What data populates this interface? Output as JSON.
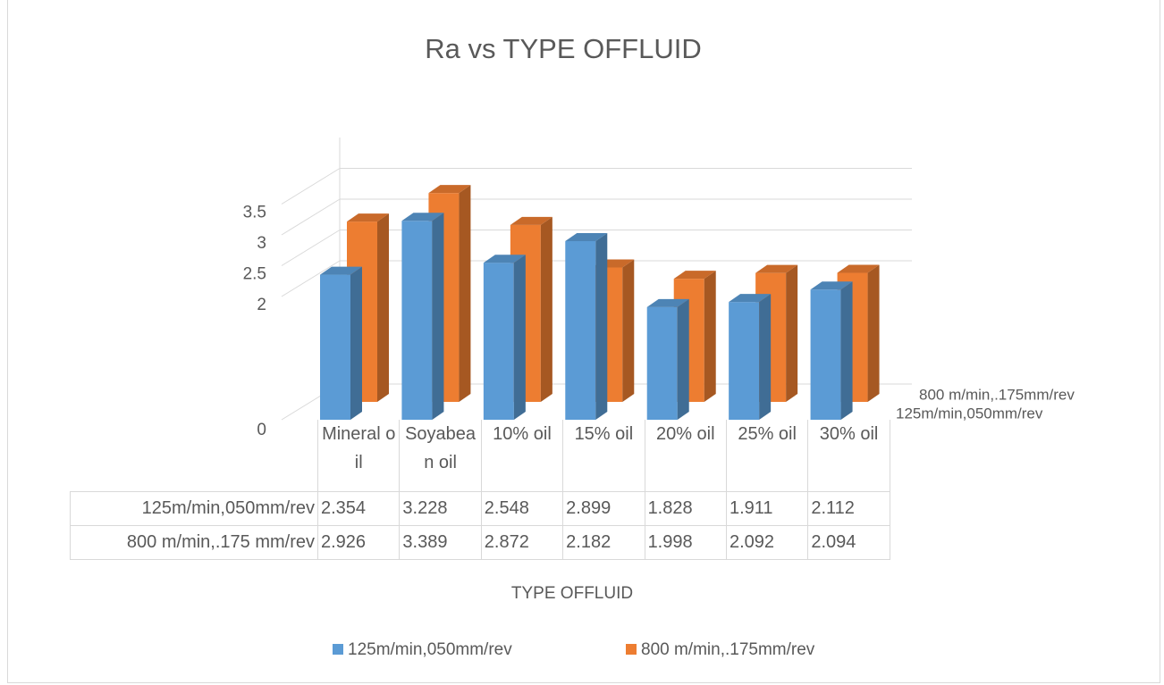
{
  "chart_data": {
    "type": "bar3d",
    "title": "Ra vs TYPE OFFLUID",
    "x_label": "TYPE OFFLUID",
    "categories": [
      "Mineral oil",
      "Soyabean oil",
      "10% oil",
      "15% oil",
      "20% oil",
      "25% oil",
      "30% oil"
    ],
    "series": [
      {
        "name": "125m/min,050mm/rev",
        "table_label": "125m/min,050mm/rev",
        "color": "#5b9bd5",
        "values": [
          2.354,
          3.228,
          2.548,
          2.899,
          1.828,
          1.911,
          2.112
        ]
      },
      {
        "name": "800 m/min,.175mm/rev",
        "table_label": "800 m/min,.175 mm/rev",
        "color": "#ed7d31",
        "values": [
          2.926,
          3.389,
          2.872,
          2.182,
          1.998,
          2.092,
          2.094
        ]
      }
    ],
    "ylim": [
      0,
      4
    ],
    "yticks": [
      0,
      2,
      2.5,
      3,
      3.5
    ],
    "grid": true,
    "legend": "bottom",
    "data_table": true
  }
}
